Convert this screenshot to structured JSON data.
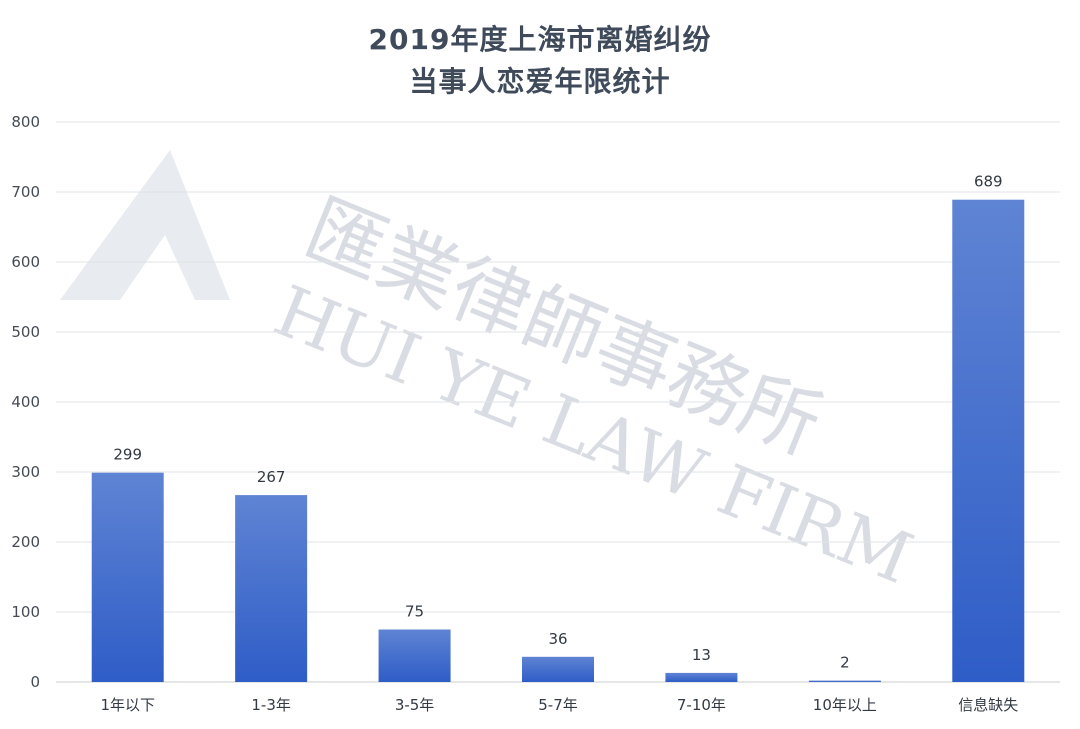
{
  "chart_data": {
    "type": "bar",
    "title": [
      "2019年度上海市离婚纠纷",
      "当事人恋爱年限统计"
    ],
    "categories": [
      "1年以下",
      "1-3年",
      "3-5年",
      "5-7年",
      "7-10年",
      "10年以上",
      "信息缺失"
    ],
    "values": [
      299,
      267,
      75,
      36,
      13,
      2,
      689
    ],
    "ylim": [
      0,
      800
    ],
    "yticks": [
      0,
      100,
      200,
      300,
      400,
      500,
      600,
      700,
      800
    ],
    "grid": true,
    "data_labels": true,
    "bar_color_top": "#5f84d4",
    "bar_color_bottom": "#2f5dc7",
    "legend": "none"
  },
  "watermark": {
    "chinese": "匯業律師事務所",
    "english": "HUI YE LAW FIRM"
  }
}
